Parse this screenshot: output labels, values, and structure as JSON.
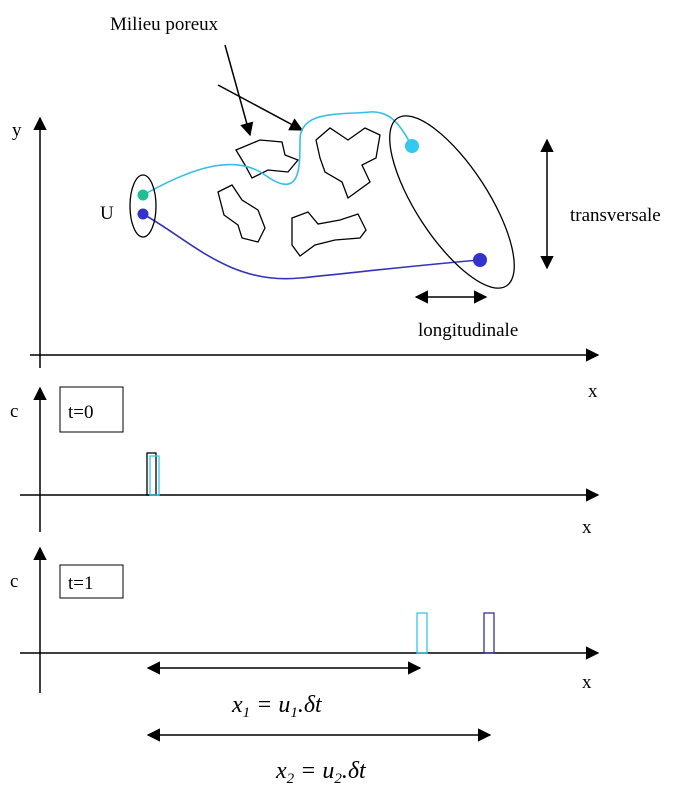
{
  "title": "Milieu poreux",
  "top_panel": {
    "y_label": "y",
    "x_label": "x",
    "source_label": "U",
    "transverse_label": "transversale",
    "longitudinal_label": "longitudinale"
  },
  "panel_t0": {
    "c_label": "c",
    "time_label": "t=0",
    "x_label": "x"
  },
  "panel_t1": {
    "c_label": "c",
    "time_label": "t=1",
    "x_label": "x"
  },
  "formula1": {
    "lhs": "x",
    "lhs_sub": "1",
    "op": "=",
    "rhs": "u",
    "rhs_sub": "1",
    "tail": ".δt"
  },
  "formula2": {
    "lhs": "x",
    "lhs_sub": "2",
    "op": "=",
    "rhs": "u",
    "rhs_sub": "2",
    "tail": ".δt"
  }
}
